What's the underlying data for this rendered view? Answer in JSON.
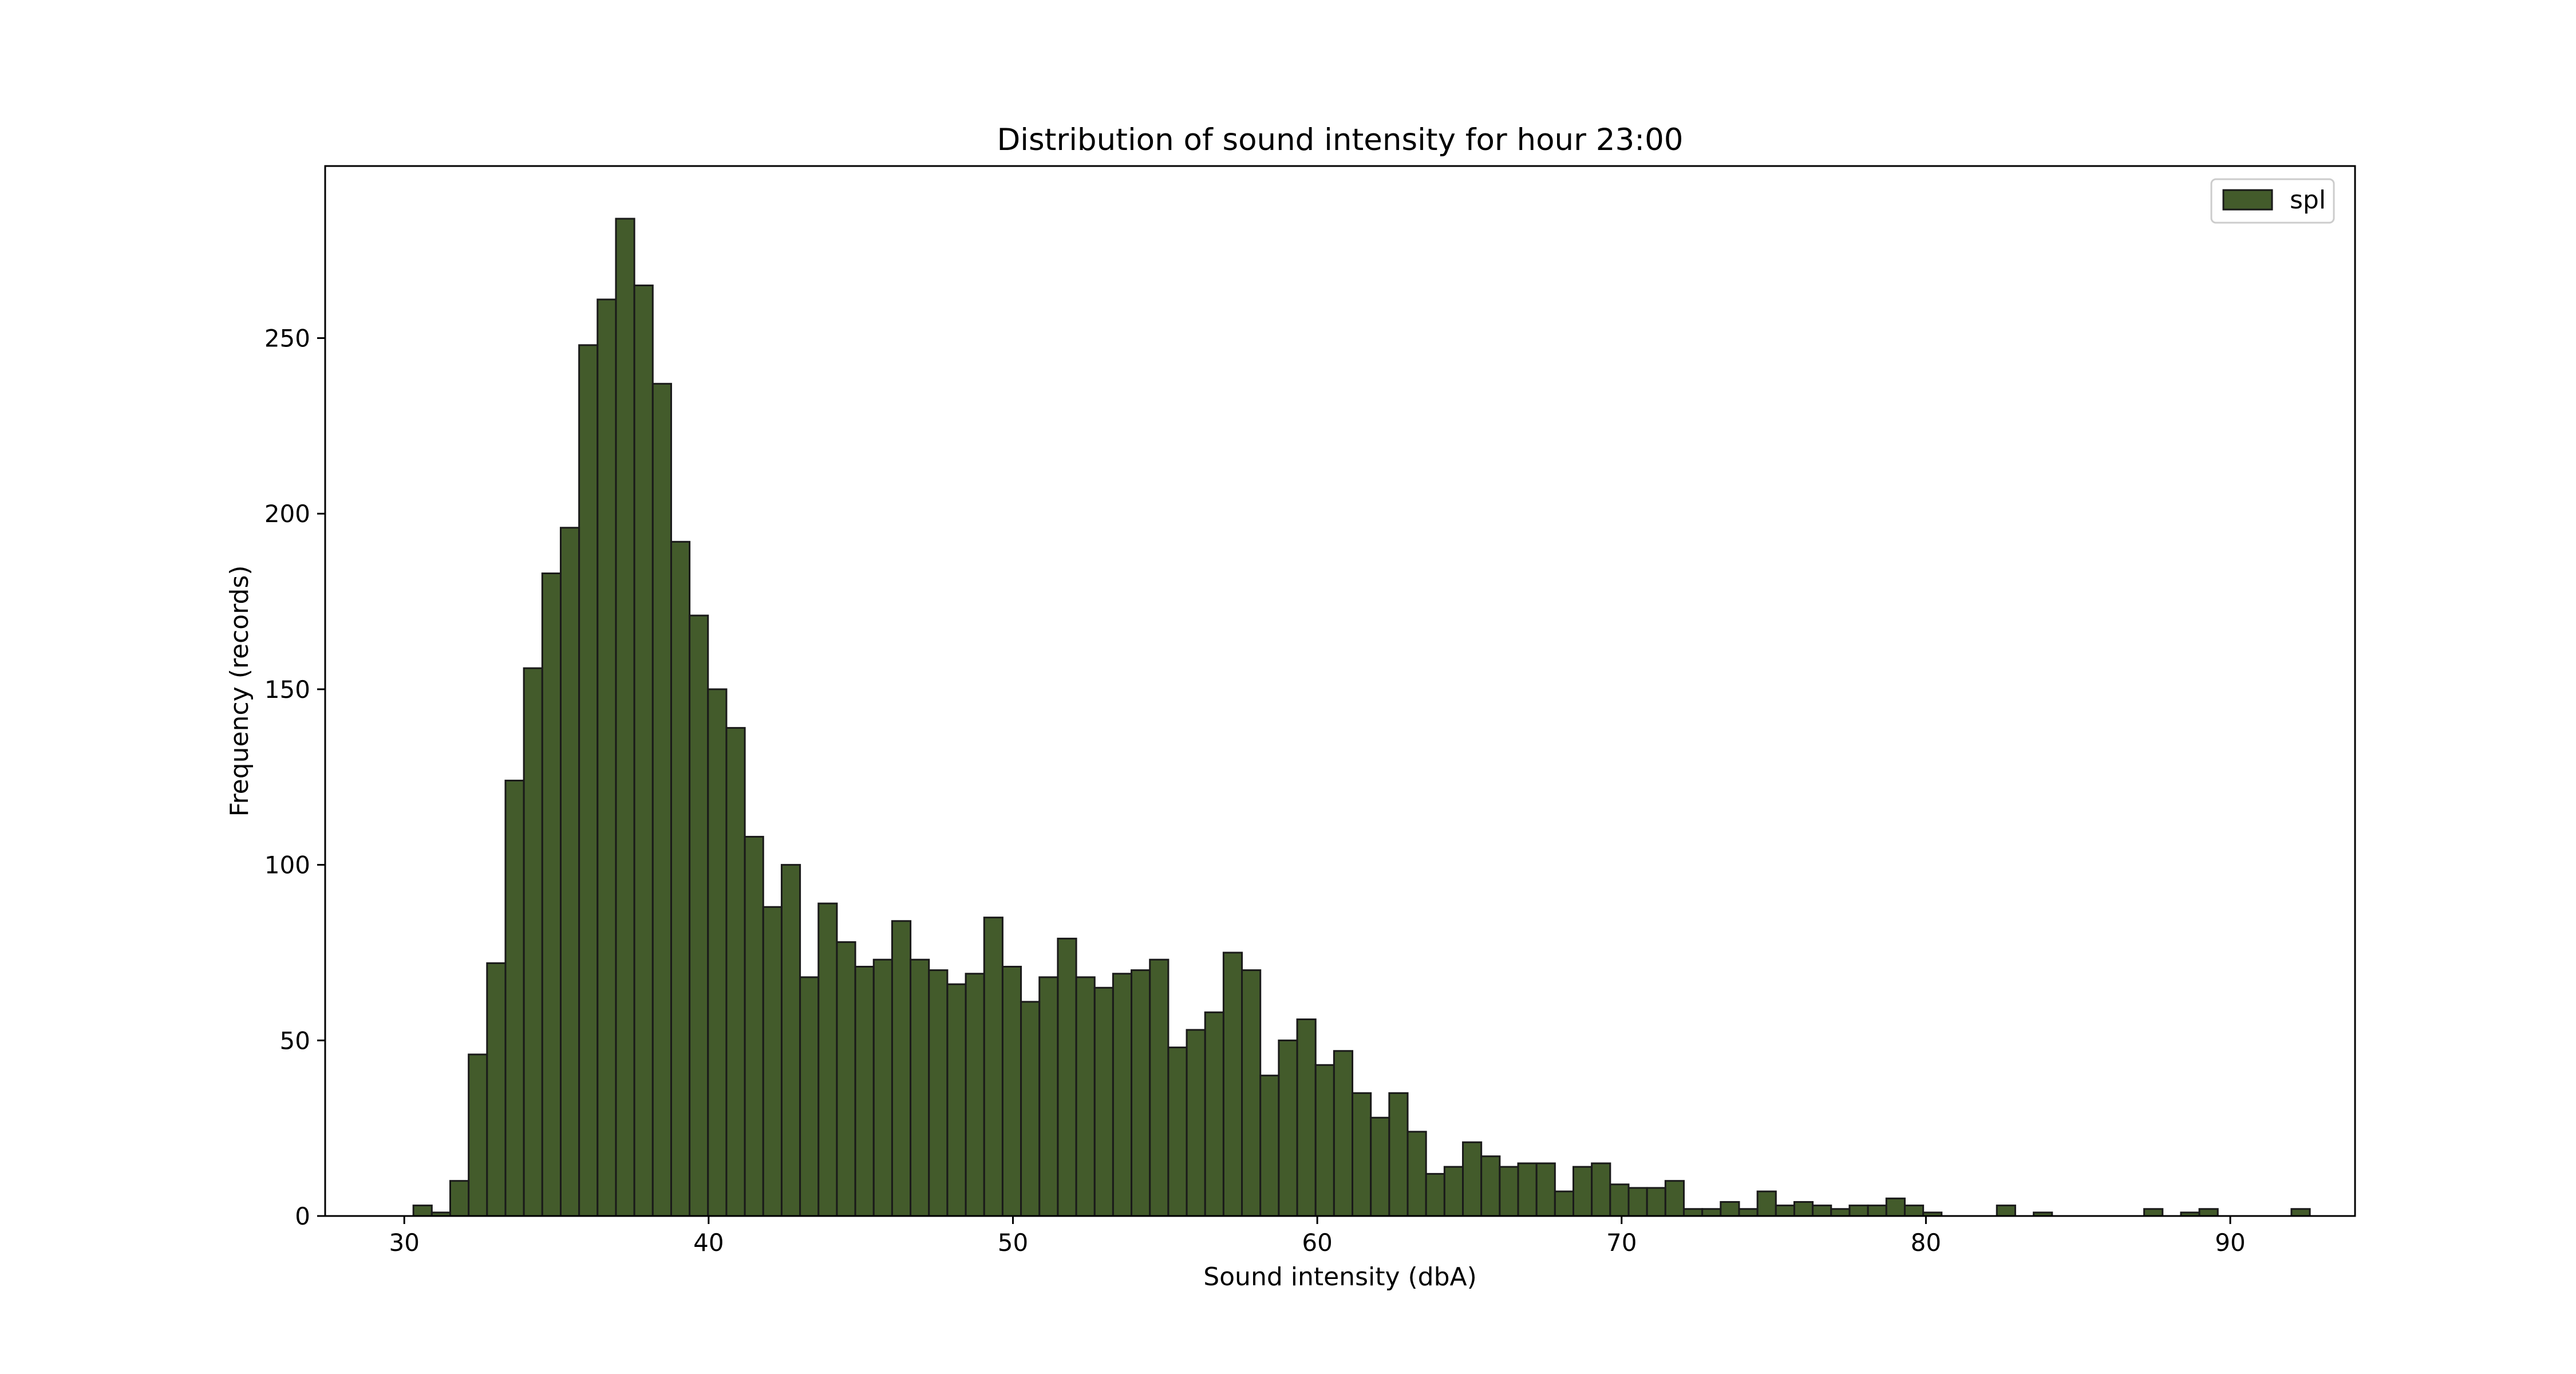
{
  "chart_data": {
    "type": "bar",
    "title": "Distribution of sound intensity for hour 23:00",
    "xlabel": "Sound intensity (dbA)",
    "ylabel": "Frequency (records)",
    "xlim": [
      27.4,
      94.1
    ],
    "ylim": [
      0,
      299
    ],
    "xticks": [
      "30",
      "40",
      "50",
      "60",
      "70",
      "80",
      "90"
    ],
    "yticks": [
      "0",
      "50",
      "100",
      "150",
      "200",
      "250"
    ],
    "bin_start": 30.3,
    "bin_width": 0.605,
    "values": [
      3,
      1,
      10,
      46,
      72,
      124,
      156,
      183,
      196,
      248,
      261,
      284,
      265,
      237,
      192,
      171,
      150,
      139,
      108,
      88,
      100,
      68,
      89,
      78,
      71,
      73,
      84,
      73,
      70,
      66,
      69,
      85,
      71,
      61,
      68,
      79,
      68,
      65,
      69,
      70,
      73,
      48,
      53,
      58,
      75,
      70,
      40,
      50,
      56,
      43,
      47,
      35,
      28,
      35,
      24,
      12,
      14,
      21,
      17,
      14,
      15,
      15,
      7,
      14,
      15,
      9,
      8,
      8,
      10,
      2,
      2,
      4,
      2,
      7,
      3,
      4,
      3,
      2,
      3,
      3,
      5,
      3,
      1,
      0,
      0,
      0,
      3,
      0,
      1,
      0,
      0,
      0,
      0,
      0,
      2,
      0,
      1,
      2,
      0,
      0,
      0,
      0,
      2
    ],
    "bar_color": "#435b2b",
    "edge_color": "#1a1a1a",
    "grid": false,
    "legend": {
      "position": "top-right",
      "entries": [
        "spl"
      ]
    }
  }
}
